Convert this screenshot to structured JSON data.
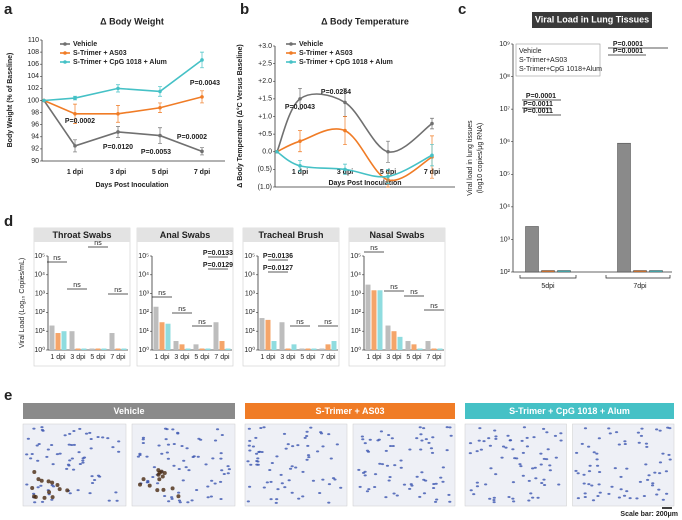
{
  "chart_data": [
    {
      "type": "line",
      "panel": "a",
      "title": "Δ Body Weight",
      "ylabel": "Body Weight (% of Baseline)",
      "xlabel": "Days Post Inoculation",
      "categories": [
        null,
        "1 dpi",
        "3 dpi",
        "5 dpi",
        "7 dpi"
      ],
      "ylim": [
        90,
        110
      ],
      "yticks": [
        90,
        92,
        94,
        96,
        98,
        100,
        102,
        104,
        106,
        108,
        110
      ],
      "series": [
        {
          "name": "Vehicle",
          "color": "#707070",
          "values": [
            100,
            92.5,
            94.8,
            94.2,
            91.6
          ],
          "errors": [
            0,
            1.0,
            0.9,
            1.3,
            0.6
          ]
        },
        {
          "name": "S-Trimer + AS03",
          "color": "#f07c26",
          "values": [
            100,
            97.8,
            97.8,
            98.8,
            100.6
          ],
          "errors": [
            0,
            1.6,
            1.4,
            0.8,
            1.0
          ]
        },
        {
          "name": "S-Trimer + CpG 1018 + Alum",
          "color": "#45c1c6",
          "values": [
            100,
            100.4,
            102,
            101.5,
            106.7
          ],
          "errors": [
            0,
            0.3,
            0.6,
            0.8,
            1.3
          ]
        }
      ],
      "annotations": [
        {
          "text": "P=0.0002",
          "color": "#707070"
        },
        {
          "text": "P=0.0120",
          "color": "#707070"
        },
        {
          "text": "P=0.0053",
          "color": "#707070"
        },
        {
          "text": "P=0.0002",
          "color": "#707070"
        },
        {
          "text": "P=0.0043",
          "color": "#45c1c6"
        }
      ]
    },
    {
      "type": "line",
      "smooth": true,
      "panel": "b",
      "title": "Δ Body Temperature",
      "ylabel": "Δ Body Temperature (Δ°C Versus Baseline)",
      "xlabel": "Days Post Inoculation",
      "categories": [
        null,
        "1 dpi",
        "3 dpi",
        "5 dpi",
        "7 dpi"
      ],
      "ylim": [
        -1,
        3
      ],
      "yticks": [
        {
          "value": 3,
          "label": "+3.0"
        },
        {
          "value": 2.5,
          "label": "+2.5"
        },
        {
          "value": 2,
          "label": "+2.0"
        },
        {
          "value": 1.5,
          "label": "+1.5"
        },
        {
          "value": 1,
          "label": "+1.0"
        },
        {
          "value": 0.5,
          "label": "+0.5"
        },
        {
          "value": 0,
          "label": "0.0"
        },
        {
          "value": -0.5,
          "label": "(0.5)"
        },
        {
          "value": -1,
          "label": "(1.0)"
        }
      ],
      "series": [
        {
          "name": "Vehicle",
          "color": "#707070",
          "values": [
            0,
            1.5,
            1.4,
            0.0,
            0.8
          ],
          "errors": [
            0,
            0.3,
            0.4,
            0.3,
            0.15
          ]
        },
        {
          "name": "S-Trimer + AS03",
          "color": "#f07c26",
          "values": [
            0,
            0.3,
            0.6,
            -0.8,
            -0.15
          ],
          "errors": [
            0,
            0.3,
            0.4,
            0.2,
            0.6
          ]
        },
        {
          "name": "S-Trimer + CpG 1018 + Alum",
          "color": "#45c1c6",
          "values": [
            0,
            -0.4,
            -0.5,
            -0.7,
            -0.1
          ],
          "errors": [
            0,
            0.15,
            0.15,
            0.2,
            0.3
          ]
        }
      ],
      "annotations": [
        {
          "text": "P=0.0043",
          "color": "#707070"
        },
        {
          "text": "P=0.0284",
          "color": "#707070"
        }
      ]
    },
    {
      "type": "bar",
      "log_scale": true,
      "panel": "c",
      "title": "Viral Load in Lung Tissues",
      "ylabel": [
        "Viral load in lung tissues",
        "(log10 copies/μg RNA)"
      ],
      "categories": [
        "5dpi",
        "7dpi"
      ],
      "ylim": [
        100,
        1000000000
      ],
      "yticks": [
        {
          "value": 100,
          "label": "10²"
        },
        {
          "value": 1000,
          "label": "10³"
        },
        {
          "value": 10000,
          "label": "10⁴"
        },
        {
          "value": 100000,
          "label": "10⁵"
        },
        {
          "value": 1000000,
          "label": "10⁶"
        },
        {
          "value": 10000000,
          "label": "10⁷"
        },
        {
          "value": 100000000,
          "label": "10⁸"
        },
        {
          "value": 1000000000,
          "label": "10⁹"
        }
      ],
      "series": [
        {
          "name": "Vehicle",
          "color": "#8a8a8a",
          "values": [
            2500,
            900000
          ]
        },
        {
          "name": "S-Trimer+AS03",
          "color": "#f07c26",
          "values": [
            100,
            100
          ]
        },
        {
          "name": "S-Trimer+CpG 1018+Alum",
          "color": "#45c1c6",
          "values": [
            100,
            100
          ]
        }
      ],
      "annotations": [
        {
          "text": "P=0.0001",
          "color": "#222"
        },
        {
          "text": "P=0.0011",
          "color": "#222"
        },
        {
          "text": "P=0.0011",
          "color": "#222"
        },
        {
          "text": "P=0.0001",
          "color": "#222"
        },
        {
          "text": "P=0.0001",
          "color": "#222"
        }
      ]
    },
    {
      "type": "bar",
      "log_scale": true,
      "panel": "d",
      "title": "Throat Swabs",
      "ylabel": "Viral Load (Log₁₀ Copies/mL)",
      "categories": [
        "1 dpi",
        "3 dpi",
        "5 dpi",
        "7 dpi"
      ],
      "ylim": [
        1,
        100000
      ],
      "yticks": [
        {
          "value": 1,
          "label": "10⁰"
        },
        {
          "value": 10,
          "label": "10¹"
        },
        {
          "value": 100,
          "label": "10²"
        },
        {
          "value": 1000,
          "label": "10³"
        },
        {
          "value": 10000,
          "label": "10⁴"
        },
        {
          "value": 100000,
          "label": "10⁵"
        }
      ],
      "series": [
        {
          "name": "Vehicle",
          "color": "#bdbdbd",
          "values": [
            20,
            10,
            1,
            8
          ]
        },
        {
          "name": "S-Trimer + AS03",
          "color": "#f5a56a",
          "values": [
            8,
            1,
            1,
            1
          ]
        },
        {
          "name": "S-Trimer + CpG 1018 + Alum",
          "color": "#8fdcdf",
          "values": [
            10,
            1,
            1,
            1
          ]
        }
      ],
      "annotations": [
        {
          "text": "ns",
          "color": "#222"
        },
        {
          "text": "ns",
          "color": "#222"
        },
        {
          "text": "ns",
          "color": "#222"
        },
        {
          "text": "ns",
          "color": "#222"
        }
      ]
    },
    {
      "type": "bar",
      "log_scale": true,
      "title": "Anal Swabs",
      "categories": [
        "1 dpi",
        "3 dpi",
        "5 dpi",
        "7 dpi"
      ],
      "ylim": [
        1,
        100000
      ],
      "yticks": [
        {
          "value": 1,
          "label": "10⁰"
        },
        {
          "value": 10,
          "label": "10¹"
        },
        {
          "value": 100,
          "label": "10²"
        },
        {
          "value": 1000,
          "label": "10³"
        },
        {
          "value": 10000,
          "label": "10⁴"
        },
        {
          "value": 100000,
          "label": "10⁵"
        }
      ],
      "series": [
        {
          "name": "Vehicle",
          "color": "#bdbdbd",
          "values": [
            200,
            3,
            2,
            30
          ]
        },
        {
          "name": "S-Trimer + AS03",
          "color": "#f5a56a",
          "values": [
            30,
            2,
            1,
            3
          ]
        },
        {
          "name": "S-Trimer + CpG 1018 + Alum",
          "color": "#8fdcdf",
          "values": [
            25,
            1,
            1,
            1
          ]
        }
      ],
      "annotations": [
        {
          "text": "ns",
          "color": "#222"
        },
        {
          "text": "ns",
          "color": "#222"
        },
        {
          "text": "ns",
          "color": "#222"
        },
        {
          "text": "P=0.0133",
          "color": "#f07c26"
        },
        {
          "text": "P=0.0129",
          "color": "#45c1c6"
        }
      ]
    },
    {
      "type": "bar",
      "log_scale": true,
      "title": "Tracheal Brush",
      "categories": [
        "1 dpi",
        "3 dpi",
        "5 dpi",
        "7 dpi"
      ],
      "ylim": [
        1,
        100000
      ],
      "yticks": [
        {
          "value": 1,
          "label": "10⁰"
        },
        {
          "value": 10,
          "label": "10¹"
        },
        {
          "value": 100,
          "label": "10²"
        },
        {
          "value": 1000,
          "label": "10³"
        },
        {
          "value": 10000,
          "label": "10⁴"
        },
        {
          "value": 100000,
          "label": "10⁵"
        }
      ],
      "series": [
        {
          "name": "Vehicle",
          "color": "#bdbdbd",
          "values": [
            50,
            30,
            1,
            1
          ]
        },
        {
          "name": "S-Trimer + AS03",
          "color": "#f5a56a",
          "values": [
            40,
            1,
            1,
            2
          ]
        },
        {
          "name": "S-Trimer + CpG 1018 + Alum",
          "color": "#8fdcdf",
          "values": [
            3,
            2,
            1,
            3
          ]
        }
      ],
      "annotations": [
        {
          "text": "P=0.0136",
          "color": "#f07c26"
        },
        {
          "text": "P=0.0127",
          "color": "#45c1c6"
        },
        {
          "text": "ns",
          "color": "#222"
        },
        {
          "text": "ns",
          "color": "#222"
        }
      ]
    },
    {
      "type": "bar",
      "log_scale": true,
      "title": "Nasal Swabs",
      "categories": [
        "1 dpi",
        "3 dpi",
        "5 dpi",
        "7 dpi"
      ],
      "ylim": [
        1,
        100000
      ],
      "yticks": [
        {
          "value": 1,
          "label": "10⁰"
        },
        {
          "value": 10,
          "label": "10¹"
        },
        {
          "value": 100,
          "label": "10²"
        },
        {
          "value": 1000,
          "label": "10³"
        },
        {
          "value": 10000,
          "label": "10⁴"
        },
        {
          "value": 100000,
          "label": "10⁵"
        }
      ],
      "series": [
        {
          "name": "Vehicle",
          "color": "#bdbdbd",
          "values": [
            3000,
            20,
            3,
            3
          ]
        },
        {
          "name": "S-Trimer + AS03",
          "color": "#f5a56a",
          "values": [
            1500,
            10,
            2,
            1
          ]
        },
        {
          "name": "S-Trimer + CpG 1018 + Alum",
          "color": "#8fdcdf",
          "values": [
            1500,
            5,
            1,
            1
          ]
        }
      ],
      "annotations": [
        {
          "text": "ns",
          "color": "#222"
        },
        {
          "text": "ns",
          "color": "#222"
        },
        {
          "text": "ns",
          "color": "#222"
        },
        {
          "text": "ns",
          "color": "#222"
        }
      ]
    }
  ],
  "panel_e": {
    "panel": "e",
    "groups": [
      {
        "label": "Vehicle",
        "color": "#8a8a8a"
      },
      {
        "label": "S-Trimer + AS03",
        "color": "#f07c26"
      },
      {
        "label": "S-Trimer + CpG 1018 + Alum",
        "color": "#45c1c6"
      }
    ],
    "scale_bar": "Scale bar: 200μm"
  }
}
